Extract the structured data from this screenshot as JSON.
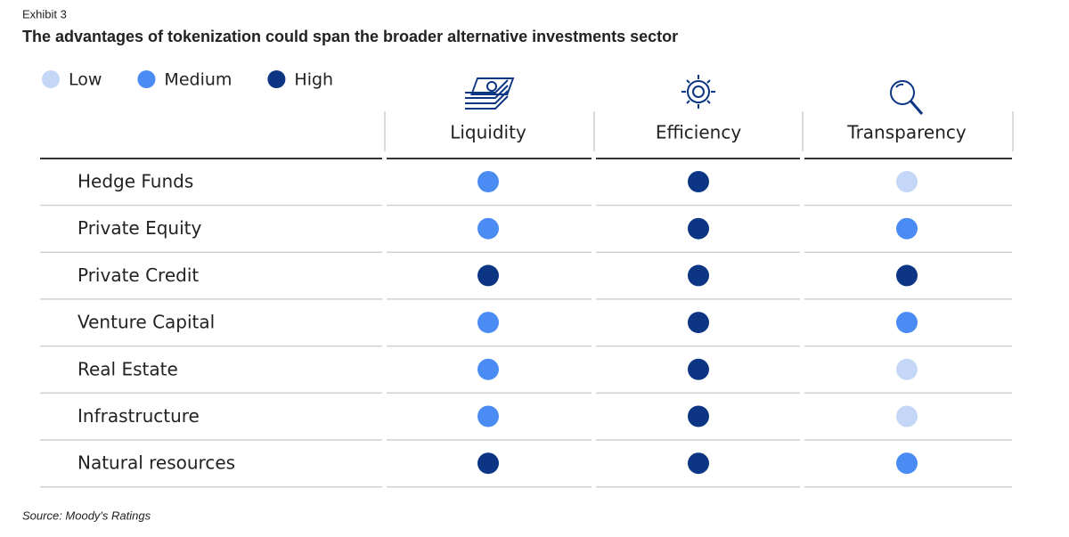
{
  "header": {
    "label": "Exhibit 3",
    "title": "The advantages of tokenization could span the broader alternative investments sector"
  },
  "legend": [
    {
      "name": "Low",
      "color": "#c5d7f6"
    },
    {
      "name": "Medium",
      "color": "#4a8cf3"
    },
    {
      "name": "High",
      "color": "#0c3584"
    }
  ],
  "table": {
    "columns": [
      "Liquidity",
      "Efficiency",
      "Transparency"
    ],
    "rows": [
      {
        "label": "Hedge Funds",
        "ratings": [
          "Medium",
          "High",
          "Low"
        ]
      },
      {
        "label": "Private Equity",
        "ratings": [
          "Medium",
          "High",
          "Medium"
        ]
      },
      {
        "label": "Private Credit",
        "ratings": [
          "High",
          "High",
          "High"
        ]
      },
      {
        "label": "Venture Capital",
        "ratings": [
          "Medium",
          "High",
          "Medium"
        ]
      },
      {
        "label": "Real Estate",
        "ratings": [
          "Medium",
          "High",
          "Low"
        ]
      },
      {
        "label": "Infrastructure",
        "ratings": [
          "Medium",
          "High",
          "Low"
        ]
      },
      {
        "label": "Natural resources",
        "ratings": [
          "High",
          "High",
          "Medium"
        ]
      }
    ]
  },
  "footer": {
    "source": "Source: Moody's Ratings"
  }
}
